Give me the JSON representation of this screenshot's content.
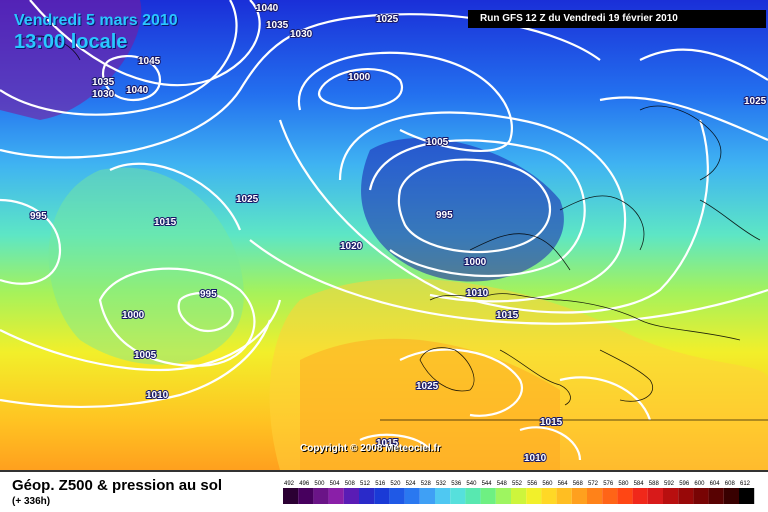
{
  "map": {
    "date_line": "Vendredi 5 mars 2010",
    "time_line": "13:00 locale",
    "run_info": "Run GFS 12 Z du Vendredi 19 février 2010",
    "copyright": "Copyright © 2008 Meteociel.fr",
    "isobar_labels": [
      "1040",
      "1035",
      "1030",
      "1025",
      "1045",
      "1035",
      "1040",
      "1030",
      "1000",
      "1005",
      "995",
      "1000",
      "1010",
      "1015",
      "1020",
      "1025",
      "1015",
      "995",
      "1000",
      "995",
      "1005",
      "1010",
      "1025",
      "1025",
      "1015",
      "1015",
      "1010"
    ]
  },
  "legend": {
    "title": "Géop. Z500 & pression au sol",
    "subtitle": "(+ 336h)",
    "scale_values": [
      "492",
      "496",
      "500",
      "504",
      "508",
      "512",
      "516",
      "520",
      "524",
      "528",
      "532",
      "536",
      "540",
      "544",
      "548",
      "552",
      "556",
      "560",
      "564",
      "568",
      "572",
      "576",
      "580",
      "584",
      "588",
      "592",
      "596",
      "600",
      "604",
      "608",
      "612"
    ],
    "scale_colors": [
      "#2b0033",
      "#47005e",
      "#6a1487",
      "#8a1fa8",
      "#5a1cb5",
      "#2a2ac9",
      "#1a3ad6",
      "#1f59e6",
      "#2a78f0",
      "#3fa0f5",
      "#4fc8f2",
      "#56e0dc",
      "#58e8b0",
      "#6ef082",
      "#9ef560",
      "#cdf53c",
      "#f2f02a",
      "#ffd826",
      "#ffbe22",
      "#ffa01e",
      "#ff8219",
      "#ff6417",
      "#ff4614",
      "#f0281a",
      "#d81a1a",
      "#b80f0f",
      "#980808",
      "#780404",
      "#580202",
      "#380000",
      "#000000"
    ]
  }
}
